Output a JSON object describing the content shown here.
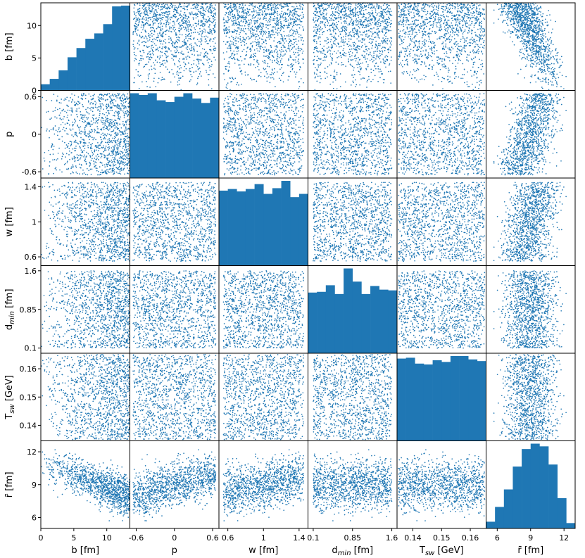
{
  "chart_data": {
    "type": "scatter-matrix",
    "title": "",
    "marker_color": "#1f77b4",
    "hist_color": "#1f77b4",
    "points_per_panel": 1200,
    "variables": [
      {
        "key": "b",
        "label": "b [fm]",
        "range": [
          0,
          13.5
        ],
        "ticks": [
          0,
          5,
          10
        ],
        "tick_labels": [
          "0",
          "5",
          "10"
        ]
      },
      {
        "key": "p",
        "label": "p",
        "range": [
          -0.7,
          0.7
        ],
        "ticks": [
          -0.6,
          0,
          0.6
        ],
        "tick_labels": [
          "-0.6",
          "0",
          "0.6"
        ]
      },
      {
        "key": "w",
        "label": "w [fm]",
        "range": [
          0.5,
          1.5
        ],
        "ticks": [
          0.6,
          1,
          1.4
        ],
        "tick_labels": [
          "0.6",
          "1",
          "1.4"
        ]
      },
      {
        "key": "dmin",
        "label": "d",
        "label_sub": "min",
        "label_suffix": " [fm]",
        "range": [
          0.0,
          1.7
        ],
        "ticks": [
          0.1,
          0.85,
          1.6
        ],
        "tick_labels": [
          "0.1",
          "0.85",
          "1.6"
        ]
      },
      {
        "key": "Tsw",
        "label": "T",
        "label_sub": "sw",
        "label_suffix": " [GeV]",
        "range": [
          0.1345,
          0.1655
        ],
        "ticks": [
          0.14,
          0.15,
          0.16
        ],
        "tick_labels": [
          "0.14",
          "0.15",
          "0.16"
        ]
      },
      {
        "key": "rbar",
        "label": "r̄ [fm]",
        "range": [
          5.0,
          13.0
        ],
        "ticks": [
          6,
          9,
          12
        ],
        "tick_labels": [
          "6",
          "9",
          "12"
        ]
      }
    ],
    "histograms": [
      {
        "var": "b",
        "bin_edges": [
          0,
          1.35,
          2.7,
          4.05,
          5.4,
          6.75,
          8.1,
          9.45,
          10.8,
          12.15,
          13.5
        ],
        "counts": [
          8,
          15,
          26,
          43,
          55,
          67,
          74,
          86,
          109,
          110
        ]
      },
      {
        "var": "p",
        "bin_edges": [
          -0.7,
          -0.56,
          -0.42,
          -0.28,
          -0.14,
          0.0,
          0.14,
          0.28,
          0.42,
          0.56,
          0.7
        ],
        "counts": [
          96,
          94,
          96,
          88,
          86,
          92,
          96,
          90,
          85,
          91
        ]
      },
      {
        "var": "w",
        "bin_edges": [
          0.5,
          0.6,
          0.7,
          0.8,
          0.9,
          1.0,
          1.1,
          1.2,
          1.3,
          1.4,
          1.5
        ],
        "counts": [
          92,
          94,
          91,
          94,
          100,
          88,
          95,
          104,
          84,
          88
        ]
      },
      {
        "var": "dmin",
        "bin_edges": [
          0.0,
          0.17,
          0.34,
          0.51,
          0.68,
          0.85,
          1.02,
          1.19,
          1.36,
          1.53,
          1.7
        ],
        "counts": [
          83,
          84,
          93,
          81,
          116,
          98,
          81,
          92,
          87,
          86
        ]
      },
      {
        "var": "Tsw",
        "bin_edges": [
          0.1345,
          0.1376,
          0.1407,
          0.1438,
          0.1469,
          0.15,
          0.1531,
          0.1562,
          0.1593,
          0.1624,
          0.1655
        ],
        "counts": [
          98,
          99,
          92,
          91,
          96,
          94,
          101,
          101,
          97,
          95
        ]
      },
      {
        "var": "rbar",
        "bin_edges": [
          5.0,
          5.8,
          6.6,
          7.4,
          8.2,
          9.0,
          9.8,
          10.6,
          11.4,
          12.2,
          13.0
        ],
        "counts": [
          10,
          32,
          58,
          92,
          118,
          126,
          122,
          95,
          45,
          8
        ]
      }
    ],
    "correlations": [
      {
        "pair": [
          "b",
          "rbar"
        ],
        "trend": "negative",
        "note": "rbar decreases from ~11 at b=0 to ~8 at b=13.5"
      },
      {
        "pair": [
          "p",
          "rbar"
        ],
        "trend": "positive"
      },
      {
        "pair": [
          "w",
          "rbar"
        ],
        "trend": "positive"
      }
    ]
  }
}
